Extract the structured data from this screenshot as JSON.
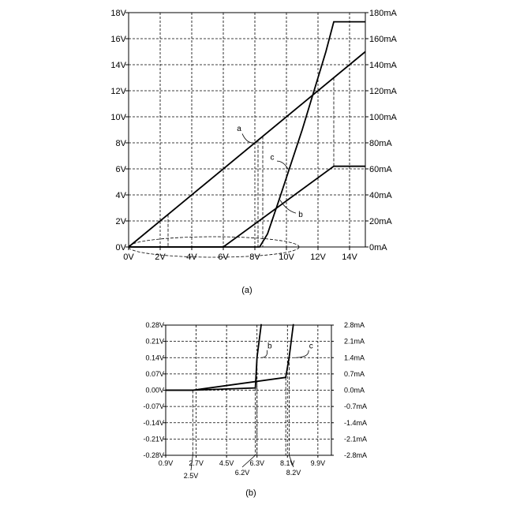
{
  "chart_data": [
    {
      "type": "line",
      "caption": "(a)",
      "xlim": [
        0,
        15
      ],
      "ylim_left": [
        0,
        18
      ],
      "ylim_right": [
        0,
        180
      ],
      "x_ticks": [
        "0V",
        "2V",
        "4V",
        "6V",
        "8V",
        "10V",
        "12V",
        "14V"
      ],
      "y_left_ticks": [
        "0V",
        "2V",
        "4V",
        "6V",
        "8V",
        "10V",
        "12V",
        "14V",
        "16V",
        "18V"
      ],
      "y_right_ticks": [
        "0mA",
        "20mA",
        "40mA",
        "60mA",
        "80mA",
        "100mA",
        "120mA",
        "140mA",
        "160mA",
        "180mA"
      ],
      "grid": true,
      "series": [
        {
          "name": "a",
          "x": [
            0,
            15
          ],
          "y": [
            0,
            15
          ]
        },
        {
          "name": "b",
          "x": [
            0,
            6,
            13,
            15
          ],
          "y": [
            0,
            0,
            6.2,
            6.2
          ]
        },
        {
          "name": "c",
          "x": [
            0,
            8.3,
            8.8,
            9.5,
            11,
            12.5,
            13,
            15
          ],
          "y": [
            0,
            0,
            1,
            3.5,
            9,
            15,
            17.3,
            17.3
          ]
        }
      ],
      "series_labels": [
        "a",
        "b",
        "c"
      ]
    },
    {
      "type": "line",
      "caption": "(b)",
      "xlim": [
        0.9,
        10.7
      ],
      "ylim_left": [
        -0.28,
        0.28
      ],
      "ylim_right": [
        -2.8,
        2.8
      ],
      "x_ticks": [
        "0.9V",
        "2.7V",
        "4.5V",
        "6.3V",
        "8.1V",
        "9.9V"
      ],
      "y_left_ticks": [
        "0.28V",
        "0.21V",
        "0.14V",
        "0.07V",
        "0.00V",
        "-0.07V",
        "-0.14V",
        "-0.21V",
        "-0.28V"
      ],
      "y_right_ticks": [
        "2.8mA",
        "2.1mA",
        "1.4mA",
        "0.7mA",
        "0.0mA",
        "-0.7mA",
        "-1.4mA",
        "-2.1mA",
        "-2.8mA"
      ],
      "annotations": [
        "2.5V",
        "6.2V",
        "8.2V"
      ],
      "grid": true,
      "series": [
        {
          "name": "b",
          "x": [
            0.9,
            2.5,
            6.2,
            6.3,
            6.55
          ],
          "y": [
            0,
            0,
            0.01,
            0.14,
            0.5
          ]
        },
        {
          "name": "c",
          "x": [
            0.9,
            2.5,
            8.0,
            8.2,
            8.45
          ],
          "y": [
            0,
            0,
            0.055,
            0.14,
            0.5
          ]
        }
      ],
      "series_labels": [
        "b",
        "c"
      ]
    }
  ]
}
